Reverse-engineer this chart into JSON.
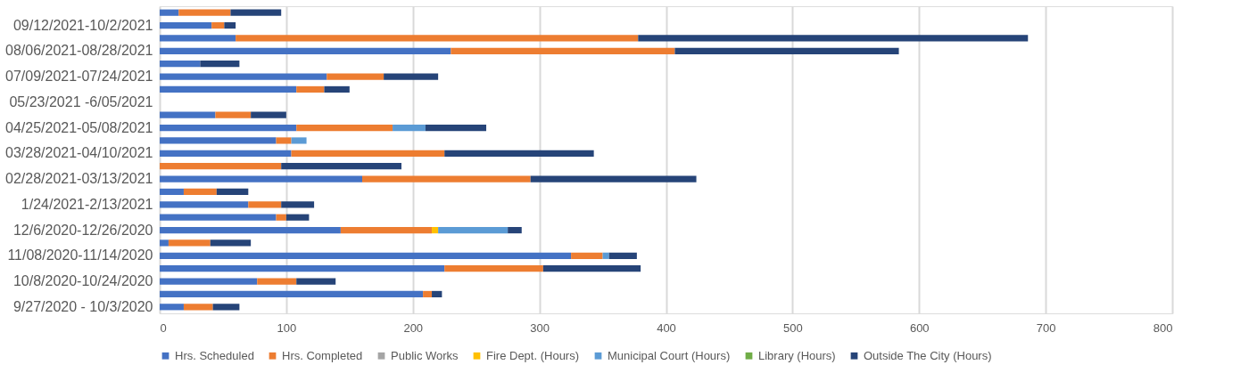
{
  "chart_data": {
    "type": "bar",
    "orientation": "horizontal",
    "stacked": true,
    "categories": [
      null,
      "09/12/2021-10/2/2021",
      null,
      "08/06/2021-08/28/2021",
      null,
      "07/09/2021-07/24/2021",
      null,
      "05/23/2021 -6/05/2021",
      null,
      "04/25/2021-05/08/2021",
      null,
      "03/28/2021-04/10/2021",
      null,
      "02/28/2021-03/13/2021",
      null,
      "1/24/2021-2/13/2021",
      null,
      "12/6/2020-12/26/2020",
      null,
      "11/08/2020-11/14/2020",
      null,
      "10/8/2020-10/24/2020",
      null,
      "9/27/2020 - 10/3/2020"
    ],
    "series": [
      {
        "name": "Hrs. Scheduled",
        "color": "#4472c4",
        "values": [
          15,
          41,
          60,
          230,
          32,
          132,
          108,
          null,
          44,
          108,
          92,
          104,
          null,
          160,
          19,
          70,
          92,
          143,
          7,
          325,
          225,
          77,
          208,
          19
        ]
      },
      {
        "name": "Hrs. Completed",
        "color": "#ed7d31",
        "values": [
          41,
          10,
          318,
          177,
          null,
          45,
          22,
          null,
          28,
          76,
          12,
          121,
          96,
          133,
          26,
          26,
          8,
          72,
          33,
          25,
          78,
          31,
          7,
          23
        ]
      },
      {
        "name": "Public Works",
        "color": "#a5a5a5",
        "values": [
          null,
          null,
          null,
          null,
          null,
          null,
          null,
          null,
          null,
          null,
          null,
          null,
          null,
          null,
          null,
          null,
          null,
          null,
          null,
          null,
          null,
          null,
          null,
          null
        ]
      },
      {
        "name": "Fire Dept. (Hours)",
        "color": "#ffc000",
        "values": [
          null,
          null,
          null,
          null,
          null,
          null,
          null,
          null,
          null,
          null,
          null,
          null,
          null,
          null,
          null,
          null,
          null,
          5,
          null,
          null,
          null,
          null,
          null,
          null
        ]
      },
      {
        "name": "Municipal Court (Hours)",
        "color": "#5b9bd5",
        "values": [
          null,
          null,
          null,
          null,
          null,
          null,
          null,
          null,
          null,
          26,
          12,
          null,
          null,
          null,
          null,
          null,
          null,
          55,
          null,
          5,
          null,
          null,
          null,
          null
        ]
      },
      {
        "name": "Library (Hours)",
        "color": "#70ad47",
        "values": [
          null,
          null,
          null,
          null,
          null,
          null,
          null,
          null,
          null,
          null,
          null,
          null,
          null,
          null,
          null,
          null,
          null,
          null,
          null,
          null,
          null,
          null,
          null,
          null
        ]
      },
      {
        "name": "Outside The City (Hours)",
        "color": "#264478",
        "values": [
          40,
          9,
          308,
          177,
          31,
          43,
          20,
          null,
          28,
          48,
          null,
          118,
          95,
          131,
          25,
          26,
          18,
          11,
          32,
          22,
          77,
          31,
          8,
          21
        ]
      }
    ],
    "xlim": [
      0,
      800
    ],
    "xticks": [
      0,
      100,
      200,
      300,
      400,
      500,
      600,
      700,
      800
    ],
    "grid": "x",
    "legend": "bottom"
  }
}
